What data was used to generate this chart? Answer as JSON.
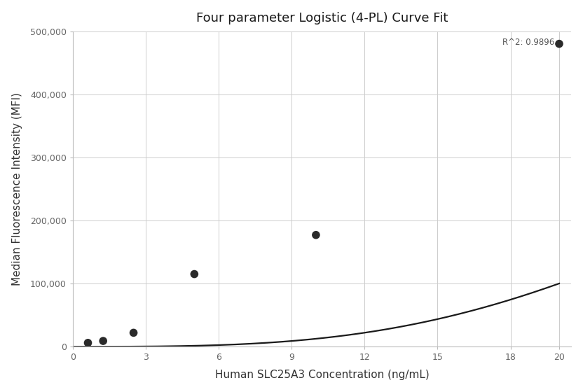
{
  "title": "Four parameter Logistic (4-PL) Curve Fit",
  "xlabel": "Human SLC25A3 Concentration (ng/mL)",
  "ylabel": "Median Fluorescence Intensity (MFI)",
  "scatter_x": [
    0.625,
    1.25,
    2.5,
    5.0,
    10.0,
    20.0
  ],
  "scatter_y": [
    6000,
    9000,
    22000,
    115000,
    177000,
    480000
  ],
  "xlim": [
    0,
    20.5
  ],
  "ylim": [
    0,
    500000
  ],
  "xticks": [
    0,
    3,
    6,
    9,
    12,
    15,
    18,
    20
  ],
  "yticks": [
    0,
    100000,
    200000,
    300000,
    400000,
    500000
  ],
  "ytick_labels": [
    "0",
    "100,000",
    "200,000",
    "300,000",
    "400,000",
    "500,000"
  ],
  "r_squared_text": "R^2: 0.9896",
  "curve_color": "#1a1a1a",
  "scatter_color": "#2a2a2a",
  "scatter_size": 70,
  "background_color": "#ffffff",
  "grid_color": "#cccccc",
  "title_fontsize": 13,
  "label_fontsize": 11,
  "tick_fontsize": 9,
  "annotation_fontsize": 8.5,
  "4pl_A": 0,
  "4pl_B": 3.2,
  "4pl_C": 35.0,
  "4pl_D": 700000
}
